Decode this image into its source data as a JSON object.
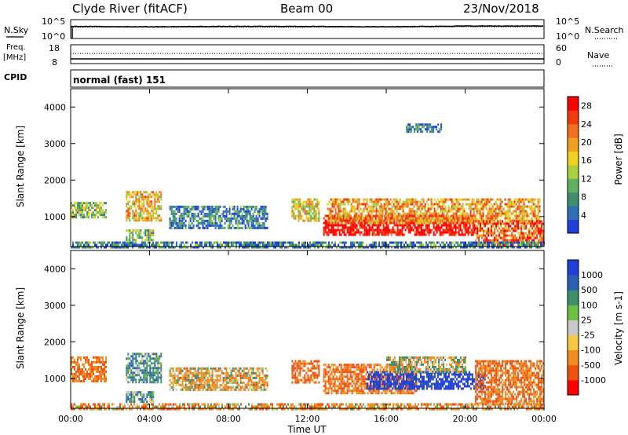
{
  "header": {
    "station": "Clyde River (fitACF)",
    "beam": "Beam 00",
    "date": "23/Nov/2018"
  },
  "noise_panel": {
    "left_label": "N.Sky",
    "right_label": "N.Search",
    "left_top_tick": "10^5",
    "left_bottom_tick": "10^0",
    "right_top_tick": "10^5",
    "right_bottom_tick": "10^0"
  },
  "freq_panel": {
    "left_label_1": "Freq.",
    "left_label_2": "[MHz]",
    "right_label": "Nave",
    "left_top_tick": "18",
    "left_bottom_tick": "8",
    "right_top_tick": "60",
    "right_bottom_tick": "0"
  },
  "cpid": {
    "label": "CPID",
    "mode": "normal (fast) 151"
  },
  "colors": {
    "power_scale": [
      "#1f3fd8",
      "#2f6fb8",
      "#3f8f6f",
      "#5fb05f",
      "#a8d040",
      "#f0d020",
      "#f0a020",
      "#f07020",
      "#f03a10",
      "#ff0000"
    ],
    "velocity_scale": [
      "#ff0000",
      "#f05010",
      "#f08c20",
      "#f8c840",
      "#c8c8c8",
      "#70c040",
      "#3f8f6f",
      "#2a60b0",
      "#1f3fd8"
    ]
  },
  "chart_data": [
    {
      "type": "line",
      "name": "noise",
      "title": "",
      "series": [
        {
          "name": "N.Sky",
          "style": "solid",
          "note_values": "log10 scale, 0 to 5",
          "x": [
            "00:00",
            "04:00",
            "08:00",
            "12:00",
            "16:00",
            "20:00",
            "00:00"
          ],
          "values": [
            3.2,
            3.1,
            3.2,
            3.2,
            3.1,
            3.3,
            3.3
          ]
        },
        {
          "name": "N.Search",
          "style": "dotted",
          "x": [
            "00:00",
            "04:00",
            "08:00",
            "12:00",
            "16:00",
            "20:00",
            "00:00"
          ],
          "values": [
            3.0,
            3.0,
            3.0,
            3.0,
            3.0,
            3.1,
            3.1
          ]
        }
      ],
      "ylim_left": [
        0,
        5
      ],
      "ylim_right": [
        0,
        5
      ],
      "ylabel_left": "N.Sky",
      "ylabel_right": "N.Search"
    },
    {
      "type": "line",
      "name": "frequency",
      "title": "",
      "series": [
        {
          "name": "Freq.",
          "style": "solid",
          "x": [
            "00:00",
            "24:00"
          ],
          "values": [
            10.5,
            10.5
          ]
        },
        {
          "name": "Nave",
          "style": "dotted",
          "x": [
            "00:00",
            "24:00"
          ],
          "values": [
            32,
            32
          ]
        }
      ],
      "ylim_left": [
        8,
        18
      ],
      "ylim_right": [
        0,
        60
      ],
      "ylabel_left": "Freq. [MHz]",
      "ylabel_right": "Nave"
    },
    {
      "type": "heatmap",
      "name": "power",
      "title": "",
      "xlabel": "",
      "ylabel": "Slant Range [km]",
      "x_ticks": [
        "00:00",
        "04:00",
        "08:00",
        "12:00",
        "16:00",
        "20:00",
        "00:00"
      ],
      "xlim_hours": [
        0,
        24
      ],
      "y_ticks": [
        1000,
        2000,
        3000,
        4000
      ],
      "ylim": [
        180,
        4500
      ],
      "colorbar": {
        "label": "Power [dB]",
        "ticks": [
          4,
          8,
          12,
          16,
          20,
          24,
          28
        ],
        "range": [
          0,
          30
        ]
      },
      "echo_regions": [
        {
          "t_start": 0.0,
          "t_end": 1.8,
          "r_low": 950,
          "r_high": 1400,
          "level": 12
        },
        {
          "t_start": 2.8,
          "t_end": 4.6,
          "r_low": 900,
          "r_high": 1700,
          "level": 18
        },
        {
          "t_start": 2.8,
          "t_end": 4.2,
          "r_low": 350,
          "r_high": 650,
          "level": 12
        },
        {
          "t_start": 5.0,
          "t_end": 10.0,
          "r_low": 700,
          "r_high": 1300,
          "level": 6
        },
        {
          "t_start": 11.2,
          "t_end": 12.6,
          "r_low": 900,
          "r_high": 1500,
          "level": 16
        },
        {
          "t_start": 12.8,
          "t_end": 20.5,
          "r_low": 500,
          "r_high": 1050,
          "level": 30
        },
        {
          "t_start": 13.0,
          "t_end": 23.8,
          "r_low": 800,
          "r_high": 1500,
          "level": 20
        },
        {
          "t_start": 17.0,
          "t_end": 18.8,
          "r_low": 3350,
          "r_high": 3550,
          "level": 6
        },
        {
          "t_start": 20.5,
          "t_end": 24.0,
          "r_low": 250,
          "r_high": 900,
          "level": 24
        },
        {
          "t_start": 0.0,
          "t_end": 24.0,
          "r_low": 180,
          "r_high": 320,
          "level": 6
        }
      ]
    },
    {
      "type": "heatmap",
      "name": "velocity",
      "title": "",
      "xlabel": "Time UT",
      "ylabel": "Slant Range [km]",
      "x_ticks": [
        "00:00",
        "04:00",
        "08:00",
        "12:00",
        "16:00",
        "20:00",
        "00:00"
      ],
      "xlim_hours": [
        0,
        24
      ],
      "y_ticks": [
        1000,
        2000,
        3000,
        4000
      ],
      "ylim": [
        180,
        4500
      ],
      "colorbar": {
        "label": "Velocity [m s-1]",
        "tick_labels": [
          "1000",
          "500",
          "100",
          "25",
          "-25",
          "-100",
          "-500",
          "-1000"
        ],
        "ticks": [
          1000,
          500,
          100,
          25,
          -25,
          -100,
          -500,
          -1000
        ],
        "range": [
          -1000,
          1000
        ]
      },
      "echo_regions": [
        {
          "t_start": 0.0,
          "t_end": 1.8,
          "r_low": 950,
          "r_high": 1600,
          "level": -300
        },
        {
          "t_start": 2.8,
          "t_end": 4.6,
          "r_low": 900,
          "r_high": 1700,
          "level": 200
        },
        {
          "t_start": 2.8,
          "t_end": 4.2,
          "r_low": 350,
          "r_high": 650,
          "level": 200
        },
        {
          "t_start": 5.0,
          "t_end": 10.0,
          "r_low": 700,
          "r_high": 1300,
          "level": -100
        },
        {
          "t_start": 11.2,
          "t_end": 12.6,
          "r_low": 900,
          "r_high": 1500,
          "level": -400
        },
        {
          "t_start": 12.8,
          "t_end": 17.5,
          "r_low": 600,
          "r_high": 1400,
          "level": -300
        },
        {
          "t_start": 15.0,
          "t_end": 21.0,
          "r_low": 700,
          "r_high": 1200,
          "level": 900
        },
        {
          "t_start": 16.0,
          "t_end": 20.0,
          "r_low": 1200,
          "r_high": 1600,
          "level": 0
        },
        {
          "t_start": 20.5,
          "t_end": 24.0,
          "r_low": 300,
          "r_high": 1500,
          "level": -300
        },
        {
          "t_start": 0.0,
          "t_end": 24.0,
          "r_low": 180,
          "r_high": 320,
          "level": -150
        }
      ]
    }
  ]
}
